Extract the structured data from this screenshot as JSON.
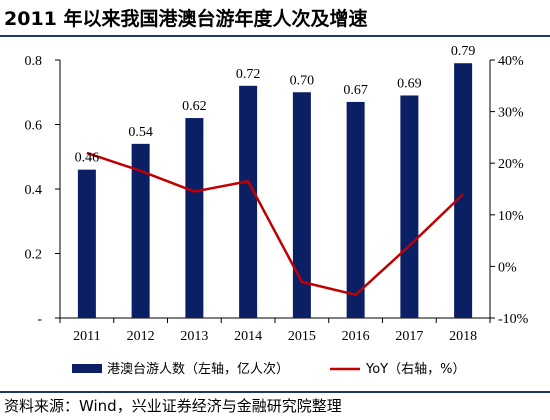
{
  "title": "2011 年以来我国港澳台游年度人次及增速",
  "source": "资料来源：Wind，兴业证券经济与金融研究院整理",
  "colors": {
    "bar": "#0b1f64",
    "line": "#c00000",
    "rule": "#1f3864"
  },
  "chart_data": {
    "type": "bar+line",
    "categories": [
      "2011",
      "2012",
      "2013",
      "2014",
      "2015",
      "2016",
      "2017",
      "2018"
    ],
    "series": [
      {
        "name": "港澳台游人数（左轴，亿人次）",
        "kind": "bar",
        "axis": "left",
        "values": [
          0.46,
          0.54,
          0.62,
          0.72,
          0.7,
          0.67,
          0.69,
          0.79
        ],
        "labels": [
          "0.46",
          "0.54",
          "0.62",
          "0.72",
          "0.70",
          "0.67",
          "0.69",
          "0.79"
        ]
      },
      {
        "name": "YoY（右轴，%）",
        "kind": "line",
        "axis": "right",
        "values": [
          22.0,
          18.5,
          14.5,
          16.5,
          -3.0,
          -5.5,
          4.0,
          14.0
        ]
      }
    ],
    "left_axis": {
      "ylim": [
        0,
        0.8
      ],
      "ticks": [
        0,
        0.2,
        0.4,
        0.6,
        0.8
      ],
      "tick_labels": [
        "-",
        "0.2",
        "0.4",
        "0.6",
        "0.8"
      ]
    },
    "right_axis": {
      "ylim": [
        -10,
        40
      ],
      "ticks": [
        -10,
        0,
        10,
        20,
        30,
        40
      ],
      "tick_labels": [
        "-10%",
        "0%",
        "10%",
        "20%",
        "30%",
        "40%"
      ]
    },
    "legend": {
      "placement": "bottom"
    },
    "grid": false
  }
}
